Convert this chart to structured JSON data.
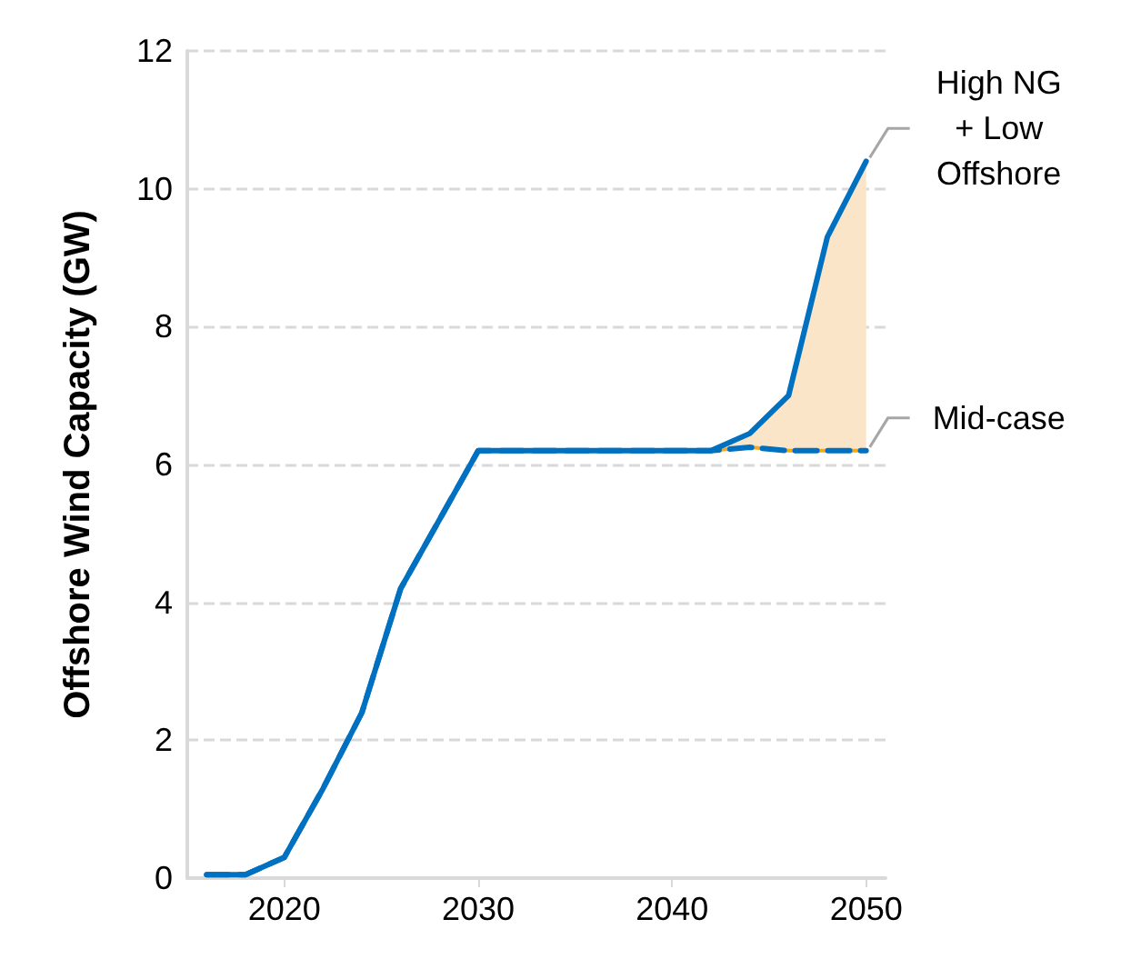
{
  "chart_data": {
    "type": "line",
    "ylabel": "Offshore Wind Capacity (GW)",
    "x": [
      2016,
      2018,
      2020,
      2022,
      2024,
      2026,
      2028,
      2030,
      2032,
      2034,
      2036,
      2038,
      2040,
      2042,
      2044,
      2046,
      2048,
      2050
    ],
    "series": [
      {
        "name": "Mid-case",
        "color": "#0070c0",
        "line_style": "dashed",
        "values": [
          0.05,
          0.05,
          0.3,
          1.3,
          2.4,
          4.2,
          5.2,
          6.2,
          6.2,
          6.2,
          6.2,
          6.2,
          6.2,
          6.2,
          6.25,
          6.2,
          6.2,
          6.2
        ]
      },
      {
        "name": "High NG\n+ Low\nOffshore",
        "color": "#0070c0",
        "line_style": "solid",
        "values": [
          0.05,
          0.05,
          0.3,
          1.3,
          2.4,
          4.2,
          5.2,
          6.2,
          6.2,
          6.2,
          6.2,
          6.2,
          6.2,
          6.2,
          6.45,
          7.0,
          9.3,
          10.4
        ]
      }
    ],
    "xlim": [
      2015,
      2051
    ],
    "xticks": [
      2020,
      2030,
      2040,
      2050
    ],
    "ylim": [
      0,
      12
    ],
    "yticks": [
      0,
      2,
      4,
      6,
      8,
      10,
      12
    ],
    "grid": "y",
    "legend": false,
    "marker": "none"
  }
}
